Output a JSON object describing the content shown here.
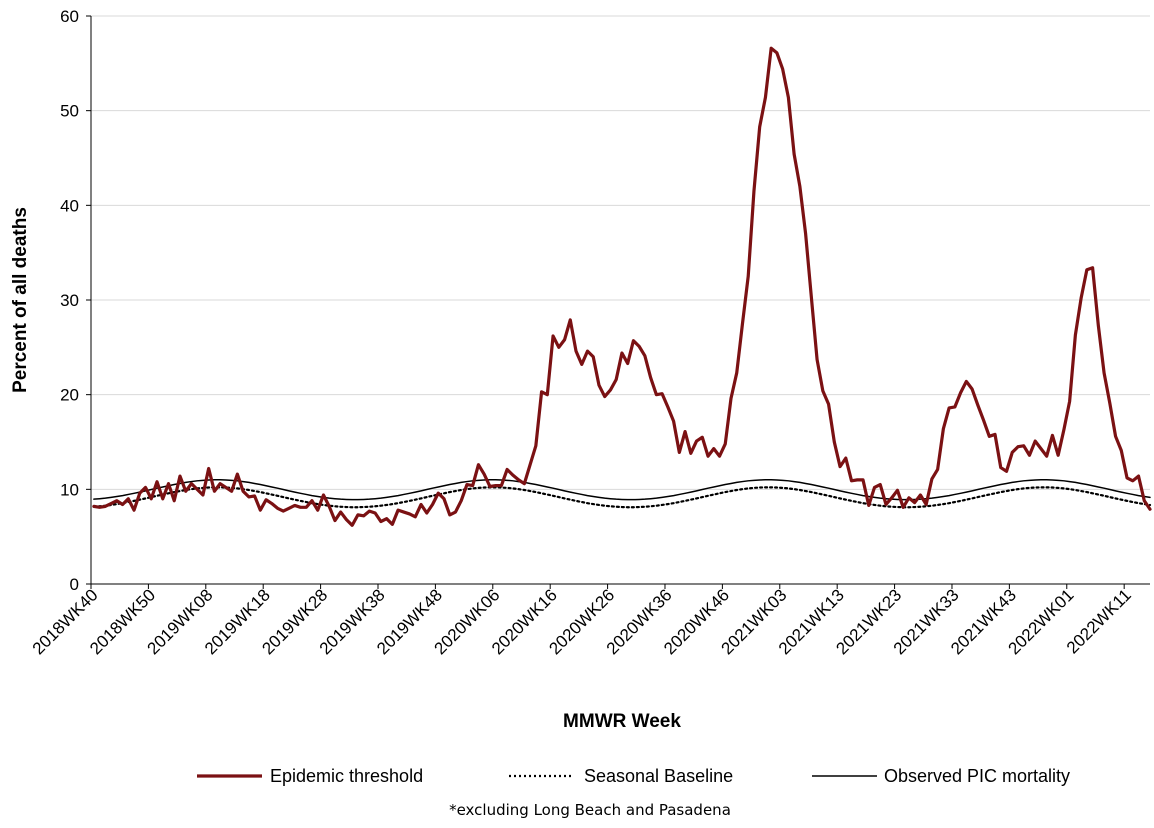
{
  "chart_data": {
    "type": "line",
    "xlabel": "MMWR Week",
    "ylabel": "Percent of all deaths",
    "ylim": [
      0,
      60
    ],
    "yticks": [
      0,
      10,
      20,
      30,
      40,
      50,
      60
    ],
    "grid": "horizontal",
    "legend_position": "bottom",
    "x_tick_labels": [
      "2018WK40",
      "2018WK50",
      "2019WK08",
      "2019WK18",
      "2019WK28",
      "2019WK38",
      "2019WK48",
      "2020WK06",
      "2020WK16",
      "2020WK26",
      "2020WK36",
      "2020WK46",
      "2021WK03",
      "2021WK13",
      "2021WK23",
      "2021WK33",
      "2021WK43",
      "2022WK01",
      "2022WK11"
    ],
    "x_tick_index": [
      0,
      10,
      20,
      30,
      40,
      50,
      60,
      70,
      80,
      90,
      100,
      110,
      120,
      130,
      140,
      150,
      160,
      170,
      180
    ],
    "footnote": "*excluding Long Beach and Pasadena",
    "series": [
      {
        "name": "Epidemic threshold",
        "color": "#7b1113",
        "style": "solid-thick",
        "values": [
          8.2,
          8.1,
          8.2,
          8.5,
          8.8,
          8.4,
          9.0,
          7.8,
          9.6,
          10.2,
          9.0,
          10.8,
          9.0,
          10.6,
          8.8,
          11.4,
          9.8,
          10.6,
          10.0,
          9.4,
          12.2,
          9.8,
          10.6,
          10.2,
          9.8,
          11.6,
          9.8,
          9.2,
          9.3,
          7.8,
          8.9,
          8.5,
          8.0,
          7.7,
          8.0,
          8.3,
          8.1,
          8.1,
          8.8,
          7.8,
          9.4,
          8.2,
          6.7,
          7.6,
          6.8,
          6.2,
          7.3,
          7.2,
          7.7,
          7.5,
          6.6,
          6.9,
          6.3,
          7.8,
          7.6,
          7.4,
          7.1,
          8.4,
          7.5,
          8.4,
          9.6,
          9.0,
          7.3,
          7.6,
          8.8,
          10.5,
          10.4,
          12.6,
          11.6,
          10.3,
          10.4,
          10.4,
          12.1,
          11.5,
          11.0,
          10.6,
          12.6,
          14.6,
          20.3,
          20.0,
          26.2,
          25.0,
          25.8,
          27.9,
          24.6,
          23.2,
          24.6,
          24.0,
          21.0,
          19.8,
          20.5,
          21.6,
          24.4,
          23.3,
          25.7,
          25.1,
          24.1,
          21.8,
          20.0,
          20.1,
          18.7,
          17.2,
          13.9,
          16.1,
          13.8,
          15.1,
          15.5,
          13.5,
          14.3,
          13.5,
          14.8,
          19.6,
          22.3,
          27.5,
          32.5,
          41.5,
          48.3,
          51.4,
          56.6,
          56.1,
          54.4,
          51.4,
          45.4,
          42.0,
          37.0,
          30.3,
          23.7,
          20.4,
          19.0,
          15.0,
          12.4,
          13.3,
          10.9,
          11.0,
          11.0,
          8.3,
          10.2,
          10.5,
          8.4,
          9.1,
          9.9,
          8.1,
          9.1,
          8.6,
          9.4,
          8.4,
          11.1,
          12.1,
          16.4,
          18.6,
          18.7,
          20.2,
          21.4,
          20.6,
          18.9,
          17.3,
          15.6,
          15.8,
          12.3,
          11.9,
          13.9,
          14.5,
          14.6,
          13.6,
          15.1,
          14.3,
          13.5,
          15.7,
          13.6,
          16.3,
          19.3,
          26.3,
          30.2,
          33.2,
          33.4,
          27.3,
          22.3,
          19.1,
          15.6,
          14.1,
          11.2,
          10.9,
          11.4,
          8.8,
          7.9
        ]
      },
      {
        "name": "Seasonal Baseline",
        "color": "#000000",
        "style": "dotted",
        "values": [
          8.16,
          8.21,
          8.27,
          8.35,
          8.44,
          8.54,
          8.66,
          8.78,
          8.91,
          9.04,
          9.18,
          9.32,
          9.45,
          9.58,
          9.71,
          9.82,
          9.93,
          10.02,
          10.1,
          10.15,
          10.19,
          10.21,
          10.21,
          10.19,
          10.15,
          10.1,
          10.02,
          9.93,
          9.82,
          9.71,
          9.58,
          9.45,
          9.32,
          9.18,
          9.04,
          8.91,
          8.78,
          8.66,
          8.54,
          8.44,
          8.35,
          8.27,
          8.21,
          8.16,
          8.13,
          8.11,
          8.11,
          8.13,
          8.16,
          8.21,
          8.27,
          8.35,
          8.44,
          8.54,
          8.66,
          8.78,
          8.91,
          9.04,
          9.18,
          9.32,
          9.45,
          9.58,
          9.71,
          9.82,
          9.93,
          10.02,
          10.1,
          10.15,
          10.19,
          10.21,
          10.21,
          10.19,
          10.15,
          10.1,
          10.02,
          9.93,
          9.82,
          9.71,
          9.58,
          9.45,
          9.32,
          9.18,
          9.04,
          8.91,
          8.78,
          8.66,
          8.54,
          8.44,
          8.35,
          8.27,
          8.21,
          8.16,
          8.13,
          8.11,
          8.11,
          8.13,
          8.16,
          8.21,
          8.27,
          8.35,
          8.44,
          8.54,
          8.66,
          8.78,
          8.91,
          9.04,
          9.18,
          9.32,
          9.45,
          9.58,
          9.71,
          9.82,
          9.93,
          10.02,
          10.1,
          10.15,
          10.19,
          10.21,
          10.21,
          10.19,
          10.15,
          10.1,
          10.02,
          9.93,
          9.82,
          9.71,
          9.58,
          9.45,
          9.32,
          9.18,
          9.04,
          8.91,
          8.78,
          8.66,
          8.54,
          8.44,
          8.35,
          8.27,
          8.21,
          8.16,
          8.13,
          8.11,
          8.11,
          8.13,
          8.16,
          8.21,
          8.27,
          8.35,
          8.44,
          8.54,
          8.66,
          8.78,
          8.91,
          9.04,
          9.18,
          9.32,
          9.45,
          9.58,
          9.71,
          9.82,
          9.93,
          10.02,
          10.1,
          10.15,
          10.19,
          10.21,
          10.21,
          10.19,
          10.15,
          10.1,
          10.02,
          9.93,
          9.82,
          9.71,
          9.58,
          9.45,
          9.32,
          9.18,
          9.04,
          8.91,
          8.78,
          8.66,
          8.54,
          8.44,
          8.35
        ]
      },
      {
        "name": "Observed PIC mortality",
        "color": "#000000",
        "style": "solid-thin",
        "values": [
          8.96,
          9.01,
          9.07,
          9.15,
          9.24,
          9.34,
          9.46,
          9.58,
          9.71,
          9.84,
          9.98,
          10.12,
          10.25,
          10.38,
          10.51,
          10.62,
          10.73,
          10.82,
          10.9,
          10.95,
          10.99,
          11.01,
          11.01,
          10.99,
          10.95,
          10.9,
          10.82,
          10.73,
          10.62,
          10.51,
          10.38,
          10.25,
          10.12,
          9.98,
          9.84,
          9.71,
          9.58,
          9.46,
          9.34,
          9.24,
          9.15,
          9.07,
          9.01,
          8.96,
          8.93,
          8.91,
          8.91,
          8.93,
          8.96,
          9.01,
          9.07,
          9.15,
          9.24,
          9.34,
          9.46,
          9.58,
          9.71,
          9.84,
          9.98,
          10.12,
          10.25,
          10.38,
          10.51,
          10.62,
          10.73,
          10.82,
          10.9,
          10.95,
          10.99,
          11.01,
          11.01,
          10.99,
          10.95,
          10.9,
          10.82,
          10.73,
          10.62,
          10.51,
          10.38,
          10.25,
          10.12,
          9.98,
          9.84,
          9.71,
          9.58,
          9.46,
          9.34,
          9.24,
          9.15,
          9.07,
          9.01,
          8.96,
          8.93,
          8.91,
          8.91,
          8.93,
          8.96,
          9.01,
          9.07,
          9.15,
          9.24,
          9.34,
          9.46,
          9.58,
          9.71,
          9.84,
          9.98,
          10.12,
          10.25,
          10.38,
          10.51,
          10.62,
          10.73,
          10.82,
          10.9,
          10.95,
          10.99,
          11.01,
          11.01,
          10.99,
          10.95,
          10.9,
          10.82,
          10.73,
          10.62,
          10.51,
          10.38,
          10.25,
          10.12,
          9.98,
          9.84,
          9.71,
          9.58,
          9.46,
          9.34,
          9.24,
          9.15,
          9.07,
          9.01,
          8.96,
          8.93,
          8.91,
          8.91,
          8.93,
          8.96,
          9.01,
          9.07,
          9.15,
          9.24,
          9.34,
          9.46,
          9.58,
          9.71,
          9.84,
          9.98,
          10.12,
          10.25,
          10.38,
          10.51,
          10.62,
          10.73,
          10.82,
          10.9,
          10.95,
          10.99,
          11.01,
          11.01,
          10.99,
          10.95,
          10.9,
          10.82,
          10.73,
          10.62,
          10.51,
          10.38,
          10.25,
          10.12,
          9.98,
          9.84,
          9.71,
          9.58,
          9.46,
          9.34,
          9.24,
          9.15
        ]
      }
    ]
  }
}
